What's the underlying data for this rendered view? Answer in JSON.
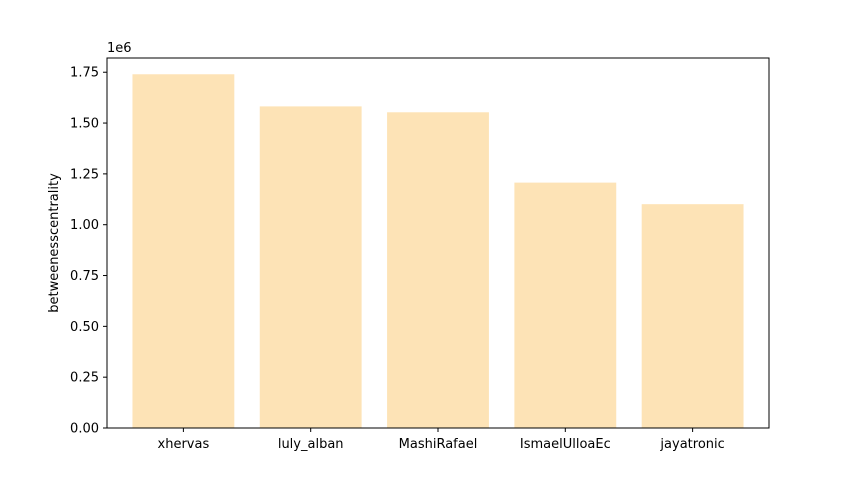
{
  "chart_data": {
    "type": "bar",
    "categories": [
      "xhervas",
      "luly_alban",
      "MashiRafael",
      "IsmaelUlloaEc",
      "jayatronic"
    ],
    "values": [
      1740000,
      1582000,
      1553000,
      1207000,
      1101000
    ],
    "title": "",
    "xlabel": "",
    "ylabel": "betweenesscentrality",
    "ylim": [
      0,
      1820000
    ],
    "yticks": [
      0,
      250000,
      500000,
      750000,
      1000000,
      1250000,
      1500000,
      1750000
    ],
    "ytick_labels": [
      "0.00",
      "0.25",
      "0.50",
      "0.75",
      "1.00",
      "1.25",
      "1.50",
      "1.75"
    ],
    "offset_label": "1e6",
    "bar_color": "#fde3b6",
    "grid": false,
    "legend": "none"
  }
}
